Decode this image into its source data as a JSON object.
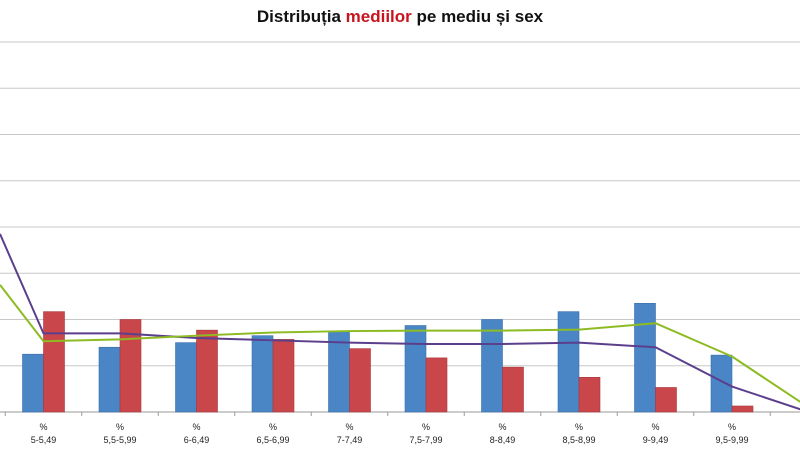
{
  "title": {
    "prefix": "Distribuția ",
    "highlight": "mediilor",
    "suffix": " pe mediu și sex"
  },
  "colors": {
    "bar_a": "#4a86c6",
    "bar_b": "#c9474b",
    "line_a": "#5b3f8c",
    "line_b": "#8dbb22",
    "grid": "#c8c8c8",
    "axis": "#9a9a9a",
    "title_highlight": "#c8141e"
  },
  "chart_data": {
    "type": "bar",
    "categories": [
      "5-5,49",
      "5,5-5,99",
      "6-6,49",
      "6,5-6,99",
      "7-7,49",
      "7,5-7,99",
      "8-8,49",
      "8,5-8,99",
      "9-9,49",
      "9,5-9,99",
      ""
    ],
    "category_prefix": "%",
    "ylim": [
      0,
      8
    ],
    "grid": true,
    "series": [
      {
        "kind": "bar",
        "values": [
          1.25,
          1.4,
          1.5,
          1.65,
          1.75,
          1.87,
          2.0,
          2.17,
          2.35,
          1.23,
          null
        ]
      },
      {
        "kind": "bar",
        "values": [
          2.17,
          2.0,
          1.77,
          1.57,
          1.37,
          1.17,
          0.97,
          0.75,
          0.53,
          0.13,
          null
        ]
      },
      {
        "kind": "line",
        "values": [
          1.7,
          1.7,
          1.6,
          1.55,
          1.5,
          1.47,
          1.47,
          1.5,
          1.4,
          0.55,
          0.0
        ]
      },
      {
        "kind": "line",
        "values": [
          1.53,
          1.57,
          1.65,
          1.72,
          1.75,
          1.76,
          1.76,
          1.78,
          1.92,
          1.2,
          0.1
        ]
      }
    ],
    "line_start_values": [
      3.85,
      2.75
    ]
  }
}
